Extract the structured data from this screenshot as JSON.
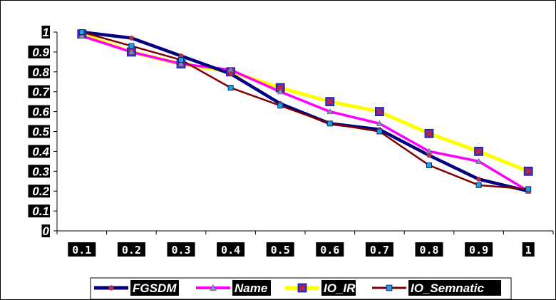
{
  "chart_data": {
    "type": "line",
    "title": "",
    "xlabel": "",
    "ylabel": "",
    "x": [
      "0.1",
      "0.2",
      "0.3",
      "0.4",
      "0.5",
      "0.6",
      "0.7",
      "0.8",
      "0.9",
      "1"
    ],
    "yticks": [
      "0",
      "0.1",
      "0.2",
      "0.3",
      "0.4",
      "0.5",
      "0.6",
      "0.7",
      "0.8",
      "0.9",
      "1"
    ],
    "ylim": [
      0,
      1
    ],
    "grid": false,
    "legend_position": "bottom",
    "series": [
      {
        "name": "FGSDM",
        "color": "#000080",
        "marker": "circle",
        "marker_color": "#c0304a",
        "values": [
          1.0,
          0.97,
          0.88,
          0.79,
          0.64,
          0.54,
          0.51,
          0.38,
          0.26,
          0.2
        ]
      },
      {
        "name": "Name",
        "color": "#ff00ff",
        "marker": "triangle",
        "marker_color": "#8c8cb4",
        "values": [
          0.98,
          0.9,
          0.84,
          0.81,
          0.7,
          0.6,
          0.54,
          0.4,
          0.35,
          0.2
        ]
      },
      {
        "name": "IO_IR",
        "color": "#ffff00",
        "marker": "x-square",
        "marker_color": "#e01e1e",
        "values": [
          0.99,
          0.9,
          0.84,
          0.8,
          0.72,
          0.65,
          0.6,
          0.49,
          0.4,
          0.3
        ]
      },
      {
        "name": "IO_Semnatic",
        "color": "#800000",
        "marker": "square",
        "marker_color": "#1ea0e6",
        "values": [
          1.0,
          0.93,
          0.86,
          0.72,
          0.63,
          0.54,
          0.5,
          0.33,
          0.23,
          0.21
        ]
      }
    ]
  }
}
